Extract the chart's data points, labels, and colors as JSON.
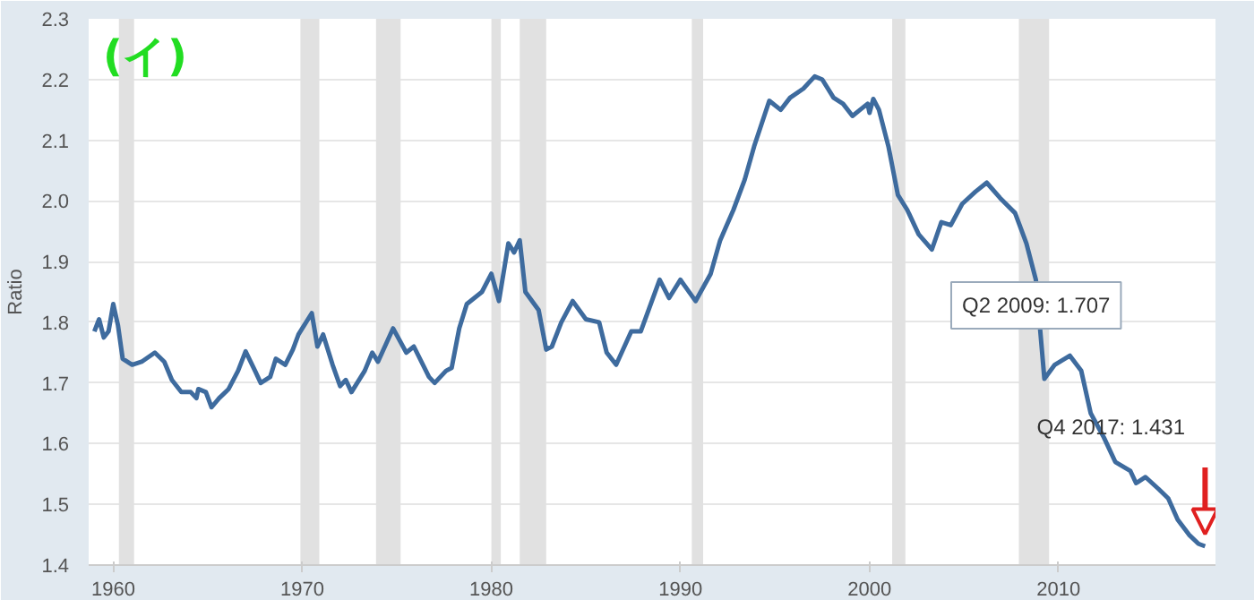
{
  "chart_data": {
    "type": "line",
    "ylabel": "Ratio",
    "x": [
      1959.0,
      1959.25,
      1959.5,
      1959.75,
      1960.0,
      1960.25,
      1960.5,
      1961.0,
      1961.5,
      1962.2,
      1962.7,
      1963.1,
      1963.6,
      1964.1,
      1964.4,
      1964.5,
      1964.9,
      1965.2,
      1965.6,
      1966.1,
      1966.6,
      1967.0,
      1967.5,
      1967.8,
      1968.3,
      1968.6,
      1969.1,
      1969.5,
      1969.8,
      1970.5,
      1970.8,
      1971.1,
      1971.6,
      1972.0,
      1972.3,
      1972.6,
      1973.3,
      1973.7,
      1974.0,
      1974.8,
      1975.5,
      1975.9,
      1976.7,
      1977.0,
      1977.6,
      1977.9,
      1978.3,
      1978.7,
      1979.5,
      1980.0,
      1980.4,
      1980.9,
      1981.2,
      1981.5,
      1981.8,
      1982.5,
      1982.9,
      1983.2,
      1983.7,
      1984.3,
      1985.0,
      1985.7,
      1986.1,
      1986.6,
      1987.4,
      1987.9,
      1988.9,
      1989.4,
      1990.0,
      1990.8,
      1991.6,
      1992.1,
      1992.8,
      1993.4,
      1993.9,
      1994.7,
      1995.3,
      1995.8,
      1996.5,
      1997.1,
      1997.5,
      1998.1,
      1998.6,
      1999.1,
      1999.5,
      1999.9,
      2000.0,
      2000.2,
      2000.5,
      2001.0,
      2001.5,
      2002.0,
      2002.6,
      2003.3,
      2003.8,
      2004.3,
      2004.9,
      2005.6,
      2006.2,
      2006.9,
      2007.7,
      2008.3,
      2008.8,
      2009.25,
      2009.8,
      2010.6,
      2011.2,
      2011.7,
      2012.4,
      2013.0,
      2013.8,
      2014.1,
      2014.6,
      2015.3,
      2015.8,
      2016.3,
      2016.9,
      2017.4,
      2017.75
    ],
    "series": [
      {
        "color": "#3e6b9e",
        "values": [
          1.785,
          1.805,
          1.775,
          1.785,
          1.83,
          1.795,
          1.74,
          1.73,
          1.735,
          1.75,
          1.735,
          1.705,
          1.685,
          1.685,
          1.675,
          1.69,
          1.685,
          1.66,
          1.675,
          1.69,
          1.72,
          1.752,
          1.72,
          1.7,
          1.71,
          1.74,
          1.73,
          1.755,
          1.78,
          1.815,
          1.76,
          1.78,
          1.73,
          1.695,
          1.705,
          1.685,
          1.72,
          1.75,
          1.735,
          1.79,
          1.75,
          1.76,
          1.71,
          1.7,
          1.72,
          1.725,
          1.79,
          1.83,
          1.85,
          1.88,
          1.835,
          1.93,
          1.915,
          1.935,
          1.85,
          1.82,
          1.755,
          1.76,
          1.8,
          1.835,
          1.805,
          1.8,
          1.75,
          1.73,
          1.785,
          1.785,
          1.87,
          1.84,
          1.87,
          1.835,
          1.88,
          1.935,
          1.985,
          2.035,
          2.09,
          2.165,
          2.15,
          2.17,
          2.185,
          2.205,
          2.2,
          2.17,
          2.16,
          2.14,
          2.15,
          2.16,
          2.145,
          2.168,
          2.15,
          2.09,
          2.01,
          1.985,
          1.945,
          1.92,
          1.965,
          1.96,
          1.995,
          2.015,
          2.03,
          2.005,
          1.98,
          1.93,
          1.87,
          1.707,
          1.73,
          1.745,
          1.72,
          1.65,
          1.61,
          1.57,
          1.555,
          1.535,
          1.545,
          1.525,
          1.51,
          1.475,
          1.45,
          1.435,
          1.431
        ]
      }
    ],
    "xlim": [
      1958.7,
      2018.3
    ],
    "xticks": [
      1960,
      1970,
      1980,
      1990,
      2000,
      2010
    ],
    "ylim": [
      1.4,
      2.3
    ],
    "yticks": [
      1.4,
      1.5,
      1.6,
      1.7,
      1.8,
      1.9,
      {
        "value": 2.0,
        "label": "2.0"
      },
      2.1,
      2.2,
      2.3
    ],
    "grid": "y",
    "bands": [
      {
        "axis": "x",
        "from": 1960.3,
        "to": 1961.1,
        "color": "#e1e1e1"
      },
      {
        "axis": "x",
        "from": 1969.9,
        "to": 1970.9,
        "color": "#e1e1e1"
      },
      {
        "axis": "x",
        "from": 1973.9,
        "to": 1975.2,
        "color": "#e1e1e1"
      },
      {
        "axis": "x",
        "from": 1980.0,
        "to": 1980.5,
        "color": "#e1e1e1"
      },
      {
        "axis": "x",
        "from": 1981.5,
        "to": 1982.9,
        "color": "#e1e1e1"
      },
      {
        "axis": "x",
        "from": 1990.6,
        "to": 1991.2,
        "color": "#e1e1e1"
      },
      {
        "axis": "x",
        "from": 2001.2,
        "to": 2001.9,
        "color": "#e1e1e1"
      },
      {
        "axis": "x",
        "from": 2007.9,
        "to": 2009.5,
        "color": "#e1e1e1"
      }
    ],
    "annotations": [
      "(イ)",
      {
        "text": "Q2 2009: 1.707",
        "x": 2009.25,
        "y": 1.707
      },
      "Q4 2017: 1.431"
    ]
  }
}
